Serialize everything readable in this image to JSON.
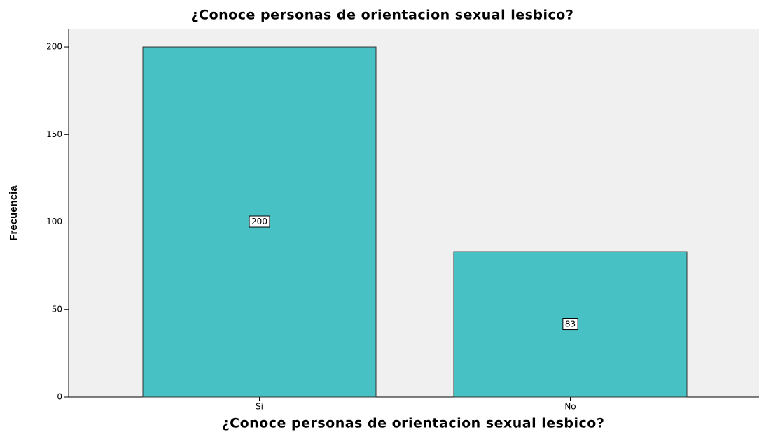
{
  "chart_data": {
    "type": "bar",
    "title": "¿Conoce personas de orientacion sexual lesbico?",
    "x_label": "¿Conoce personas de orientacion sexual lesbico?",
    "y_label": "Frecuencia",
    "categories": [
      "Si",
      "No"
    ],
    "values": [
      200,
      83
    ],
    "color": "#48c1c5",
    "ylim": [
      0,
      210
    ],
    "yticks": [
      0,
      50,
      100,
      150,
      200
    ],
    "grid": false
  }
}
